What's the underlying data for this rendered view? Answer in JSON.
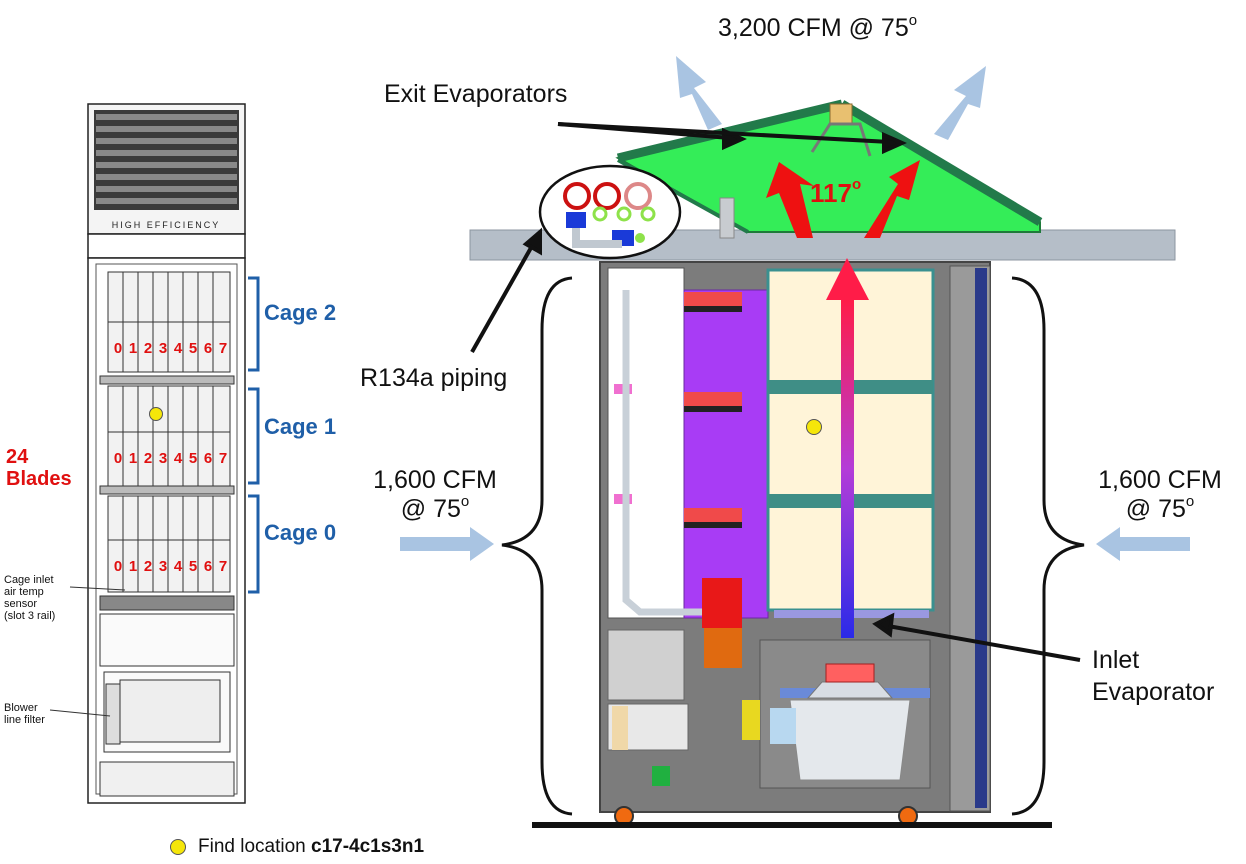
{
  "top_airflow": {
    "value": "3,200 CFM @ 75",
    "degree": "o"
  },
  "exit_evaporators": "Exit Evaporators",
  "exhaust_temp": {
    "value": "117",
    "degree": "o"
  },
  "piping": "R134a piping",
  "left_airflow": {
    "line1": "1,600 CFM",
    "line2": "@ 75",
    "degree": "o"
  },
  "right_airflow": {
    "line1": "1,600 CFM",
    "line2": "@ 75",
    "degree": "o"
  },
  "inlet_evaporator": {
    "line1": "Inlet",
    "line2": "Evaporator"
  },
  "cages": [
    {
      "label": "Cage 2",
      "slots": [
        "0",
        "1",
        "2",
        "3",
        "4",
        "5",
        "6",
        "7"
      ]
    },
    {
      "label": "Cage 1",
      "slots": [
        "0",
        "1",
        "2",
        "3",
        "4",
        "5",
        "6",
        "7"
      ]
    },
    {
      "label": "Cage 0",
      "slots": [
        "0",
        "1",
        "2",
        "3",
        "4",
        "5",
        "6",
        "7"
      ]
    }
  ],
  "blades": {
    "count": "24",
    "word": "Blades"
  },
  "sensor_label": [
    "Cage inlet",
    "air temp",
    "sensor",
    "(slot 3 rail)"
  ],
  "filter_label": [
    "Blower",
    "line filter"
  ],
  "cabinet_logo": "HIGH EFFICIENCY",
  "legend": {
    "prefix": "Find location ",
    "location": "c17-4c1s3n1"
  },
  "colors": {
    "cage_blue": "#1f5fa8",
    "blade_red": "#e01010",
    "marker_yellow": "#f5e60a",
    "evaporator_green": "#33ee55",
    "airflow_blue": "#a9c4e2",
    "heat_red": "#ee1111"
  }
}
